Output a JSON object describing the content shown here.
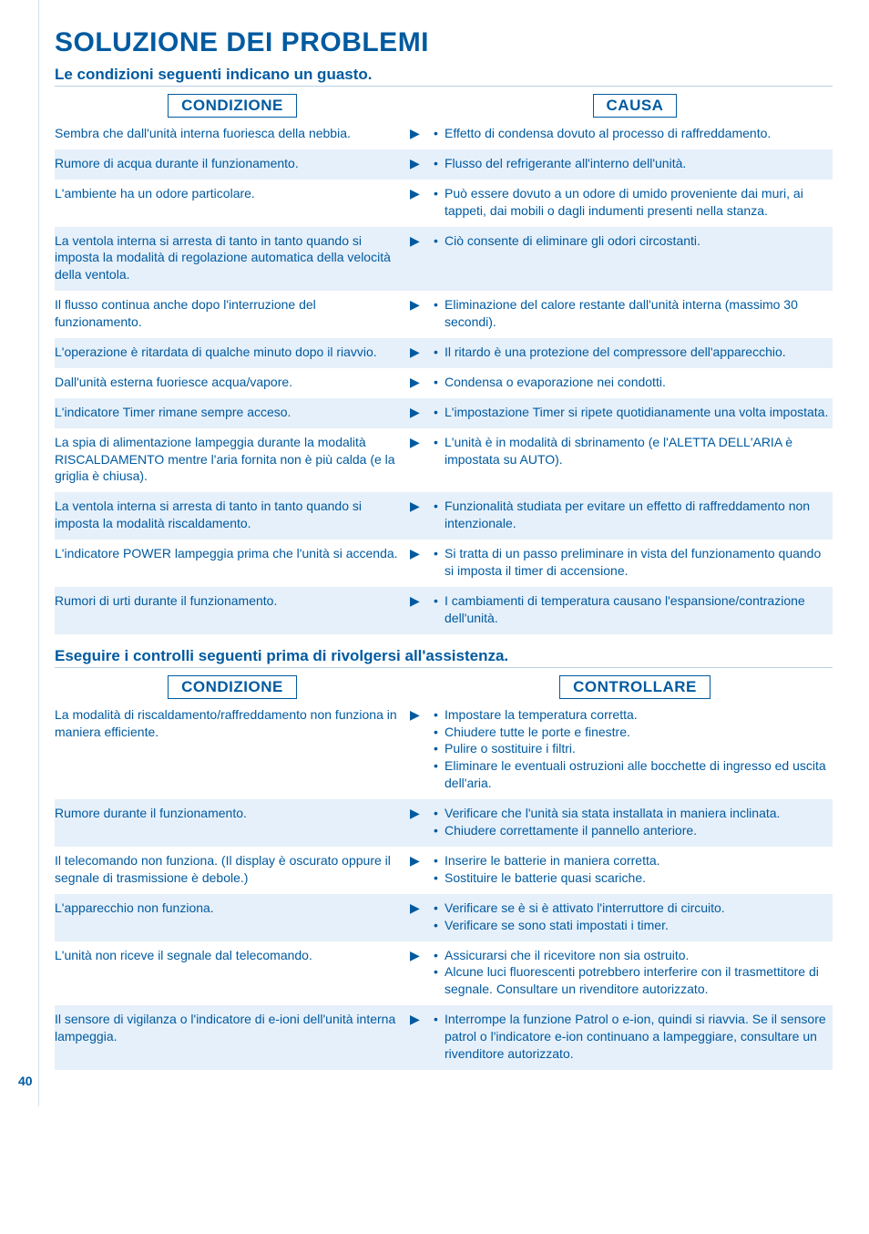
{
  "colors": {
    "primary": "#005aa0",
    "stripe_bg": "#e6f0fa",
    "rule": "#b8d0e6",
    "body_bg": "#ffffff"
  },
  "typography": {
    "title_fontsize": 30,
    "subheading_fontsize": 17,
    "colheader_fontsize": 17,
    "body_fontsize": 14,
    "font_family": "Arial, Helvetica, sans-serif"
  },
  "page_number": "40",
  "title": "SOLUZIONE DEI PROBLEMI",
  "section1": {
    "heading": "Le condizioni seguenti indicano un guasto.",
    "left_header": "CONDIZIONE",
    "right_header": "CAUSA",
    "rows": [
      {
        "condition": "Sembra che dall'unità interna fuoriesca della nebbia.",
        "causes": [
          "Effetto di condensa dovuto al processo di raffreddamento."
        ],
        "striped": false
      },
      {
        "condition": "Rumore di acqua durante il funzionamento.",
        "causes": [
          "Flusso del refrigerante all'interno dell'unità."
        ],
        "striped": true
      },
      {
        "condition": "L'ambiente ha un odore particolare.",
        "causes": [
          "Può essere dovuto a un odore di umido proveniente dai muri, ai tappeti, dai mobili o dagli indumenti presenti nella stanza."
        ],
        "striped": false
      },
      {
        "condition": "La ventola interna si arresta di tanto in tanto quando si imposta la modalità di regolazione automatica della velocità della ventola.",
        "causes": [
          "Ciò consente di eliminare gli odori circostanti."
        ],
        "striped": true
      },
      {
        "condition": "Il flusso continua anche dopo l'interruzione del funzionamento.",
        "causes": [
          "Eliminazione del calore restante dall'unità interna (massimo 30 secondi)."
        ],
        "striped": false
      },
      {
        "condition": "L'operazione è ritardata di qualche minuto dopo il riavvio.",
        "causes": [
          "Il ritardo è una protezione del compressore dell'apparecchio."
        ],
        "striped": true
      },
      {
        "condition": "Dall'unità esterna fuoriesce acqua/vapore.",
        "causes": [
          "Condensa o evaporazione nei condotti."
        ],
        "striped": false
      },
      {
        "condition": "L'indicatore Timer rimane sempre acceso.",
        "causes": [
          "L'impostazione Timer si ripete quotidianamente una volta impostata."
        ],
        "striped": true
      },
      {
        "condition": "La spia di alimentazione lampeggia durante la modalità RISCALDAMENTO mentre l'aria fornita non è più calda (e la griglia è chiusa).",
        "causes": [
          "L'unità è in modalità di sbrinamento (e l'ALETTA DELL'ARIA è impostata su AUTO)."
        ],
        "striped": false
      },
      {
        "condition": "La ventola interna si arresta di tanto in tanto quando si imposta la modalità riscaldamento.",
        "causes": [
          "Funzionalità studiata per evitare un effetto di raffreddamento non intenzionale."
        ],
        "striped": true
      },
      {
        "condition": "L'indicatore POWER lampeggia prima che l'unità si accenda.",
        "causes": [
          "Si tratta di un passo preliminare in vista del funzionamento quando si imposta il timer di accensione."
        ],
        "striped": false
      },
      {
        "condition": "Rumori di urti durante il funzionamento.",
        "causes": [
          "I cambiamenti di temperatura causano l'espansione/contrazione dell'unità."
        ],
        "striped": true
      }
    ]
  },
  "section2": {
    "heading": "Eseguire i controlli seguenti prima di rivolgersi all'assistenza.",
    "left_header": "CONDIZIONE",
    "right_header": "CONTROLLARE",
    "rows": [
      {
        "condition": "La modalità di riscaldamento/raffreddamento non funziona in maniera efficiente.",
        "causes": [
          "Impostare la temperatura corretta.",
          "Chiudere tutte le porte e finestre.",
          "Pulire o sostituire i filtri.",
          "Eliminare le eventuali ostruzioni alle bocchette di ingresso ed uscita dell'aria."
        ],
        "striped": false
      },
      {
        "condition": "Rumore durante il funzionamento.",
        "causes": [
          "Verificare che l'unità sia stata installata in maniera inclinata.",
          "Chiudere correttamente il pannello anteriore."
        ],
        "striped": true
      },
      {
        "condition": "Il telecomando non funziona.\n(Il display è oscurato oppure il segnale di trasmissione è debole.)",
        "causes": [
          "Inserire le batterie in maniera corretta.",
          "Sostituire le batterie quasi scariche."
        ],
        "striped": false
      },
      {
        "condition": "L'apparecchio non funziona.",
        "causes": [
          "Verificare se è si è attivato l'interruttore di circuito.",
          "Verificare se sono stati impostati i timer."
        ],
        "striped": true
      },
      {
        "condition": "L'unità non riceve il segnale dal telecomando.",
        "causes": [
          "Assicurarsi che il ricevitore non sia ostruito.",
          "Alcune luci fluorescenti potrebbero interferire con il trasmettitore di segnale. Consultare un rivenditore autorizzato."
        ],
        "striped": false
      },
      {
        "condition": "Il sensore di vigilanza o l'indicatore di e-ioni dell'unità interna lampeggia.",
        "causes": [
          "Interrompe la funzione Patrol o e-ion, quindi si riavvia. Se il sensore patrol o l'indicatore e-ion continuano a lampeggiare, consultare un rivenditore autorizzato."
        ],
        "striped": true
      }
    ]
  }
}
